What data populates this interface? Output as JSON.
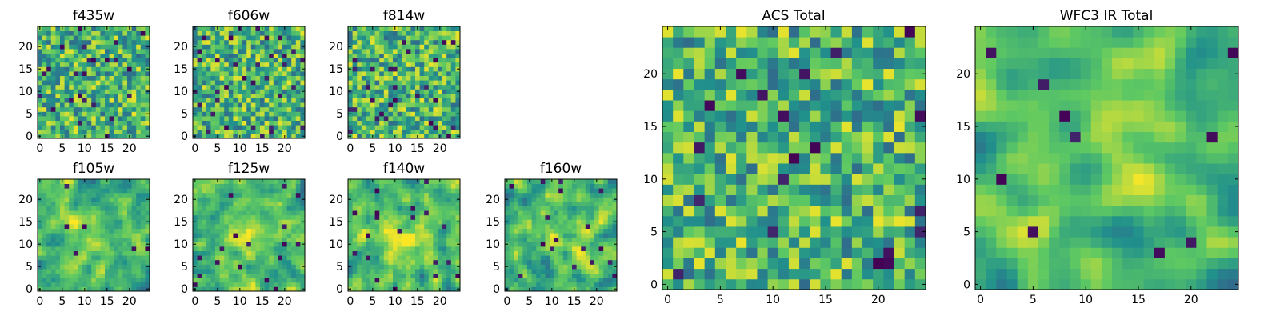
{
  "figure": {
    "colormap": [
      "#440154",
      "#3b528b",
      "#21918c",
      "#5ec962",
      "#fde725"
    ]
  },
  "chart_data": [
    {
      "type": "heatmap",
      "title": "f435w",
      "grid_size": 25,
      "xticks": [
        "0",
        "5",
        "10",
        "15",
        "20"
      ],
      "yticks": [
        "0",
        "5",
        "10",
        "15",
        "20"
      ],
      "xlim": [
        -0.5,
        24.5
      ],
      "ylim": [
        -0.5,
        24.5
      ],
      "seed": 11,
      "smooth": 0,
      "dark_frac": 0.04,
      "blob": null
    },
    {
      "type": "heatmap",
      "title": "f606w",
      "grid_size": 25,
      "xticks": [
        "0",
        "5",
        "10",
        "15",
        "20"
      ],
      "yticks": [
        "0",
        "5",
        "10",
        "15",
        "20"
      ],
      "xlim": [
        -0.5,
        24.5
      ],
      "ylim": [
        -0.5,
        24.5
      ],
      "seed": 23,
      "smooth": 0,
      "dark_frac": 0.05,
      "blob": null
    },
    {
      "type": "heatmap",
      "title": "f814w",
      "grid_size": 25,
      "xticks": [
        "0",
        "5",
        "10",
        "15",
        "20"
      ],
      "yticks": [
        "0",
        "5",
        "10",
        "15",
        "20"
      ],
      "xlim": [
        -0.5,
        24.5
      ],
      "ylim": [
        -0.5,
        24.5
      ],
      "seed": 37,
      "smooth": 0,
      "dark_frac": 0.04,
      "blob": null
    },
    {
      "type": "heatmap",
      "title": "f105w",
      "grid_size": 25,
      "xticks": [
        "0",
        "5",
        "10",
        "15",
        "20"
      ],
      "yticks": [
        "0",
        "5",
        "10",
        "15",
        "20"
      ],
      "xlim": [
        -0.5,
        24.5
      ],
      "ylim": [
        -0.5,
        24.5
      ],
      "seed": 41,
      "smooth": 1,
      "dark_frac": 0.02,
      "blob": [
        12,
        11,
        4
      ]
    },
    {
      "type": "heatmap",
      "title": "f125w",
      "grid_size": 25,
      "xticks": [
        "0",
        "5",
        "10",
        "15",
        "20"
      ],
      "yticks": [
        "0",
        "5",
        "10",
        "15",
        "20"
      ],
      "xlim": [
        -0.5,
        24.5
      ],
      "ylim": [
        -0.5,
        24.5
      ],
      "seed": 53,
      "smooth": 1,
      "dark_frac": 0.02,
      "blob": [
        12,
        11,
        4
      ]
    },
    {
      "type": "heatmap",
      "title": "f140w",
      "grid_size": 25,
      "xticks": [
        "0",
        "5",
        "10",
        "15",
        "20"
      ],
      "yticks": [
        "0",
        "5",
        "10",
        "15",
        "20"
      ],
      "xlim": [
        -0.5,
        24.5
      ],
      "ylim": [
        -0.5,
        24.5
      ],
      "seed": 67,
      "smooth": 1,
      "dark_frac": 0.02,
      "blob": [
        12,
        11,
        4
      ]
    },
    {
      "type": "heatmap",
      "title": "f160w",
      "grid_size": 25,
      "xticks": [
        "0",
        "5",
        "10",
        "15",
        "20"
      ],
      "yticks": [
        "0",
        "5",
        "10",
        "15",
        "20"
      ],
      "xlim": [
        -0.5,
        24.5
      ],
      "ylim": [
        -0.5,
        24.5
      ],
      "seed": 79,
      "smooth": 1,
      "dark_frac": 0.02,
      "blob": [
        12,
        11,
        4
      ]
    },
    {
      "type": "heatmap",
      "title": "ACS Total",
      "grid_size": 25,
      "xticks": [
        "0",
        "5",
        "10",
        "15",
        "20"
      ],
      "yticks": [
        "0",
        "5",
        "10",
        "15",
        "20"
      ],
      "xlim": [
        -0.5,
        24.5
      ],
      "ylim": [
        -0.5,
        24.5
      ],
      "seed": 97,
      "smooth": 0,
      "dark_frac": 0.03,
      "blob": null
    },
    {
      "type": "heatmap",
      "title": "WFC3 IR Total",
      "grid_size": 25,
      "xticks": [
        "0",
        "5",
        "10",
        "15",
        "20"
      ],
      "yticks": [
        "0",
        "5",
        "10",
        "15",
        "20"
      ],
      "xlim": [
        -0.5,
        24.5
      ],
      "ylim": [
        -0.5,
        24.5
      ],
      "seed": 131,
      "smooth": 2,
      "dark_frac": 0.02,
      "blob": [
        13,
        11,
        4
      ]
    }
  ]
}
